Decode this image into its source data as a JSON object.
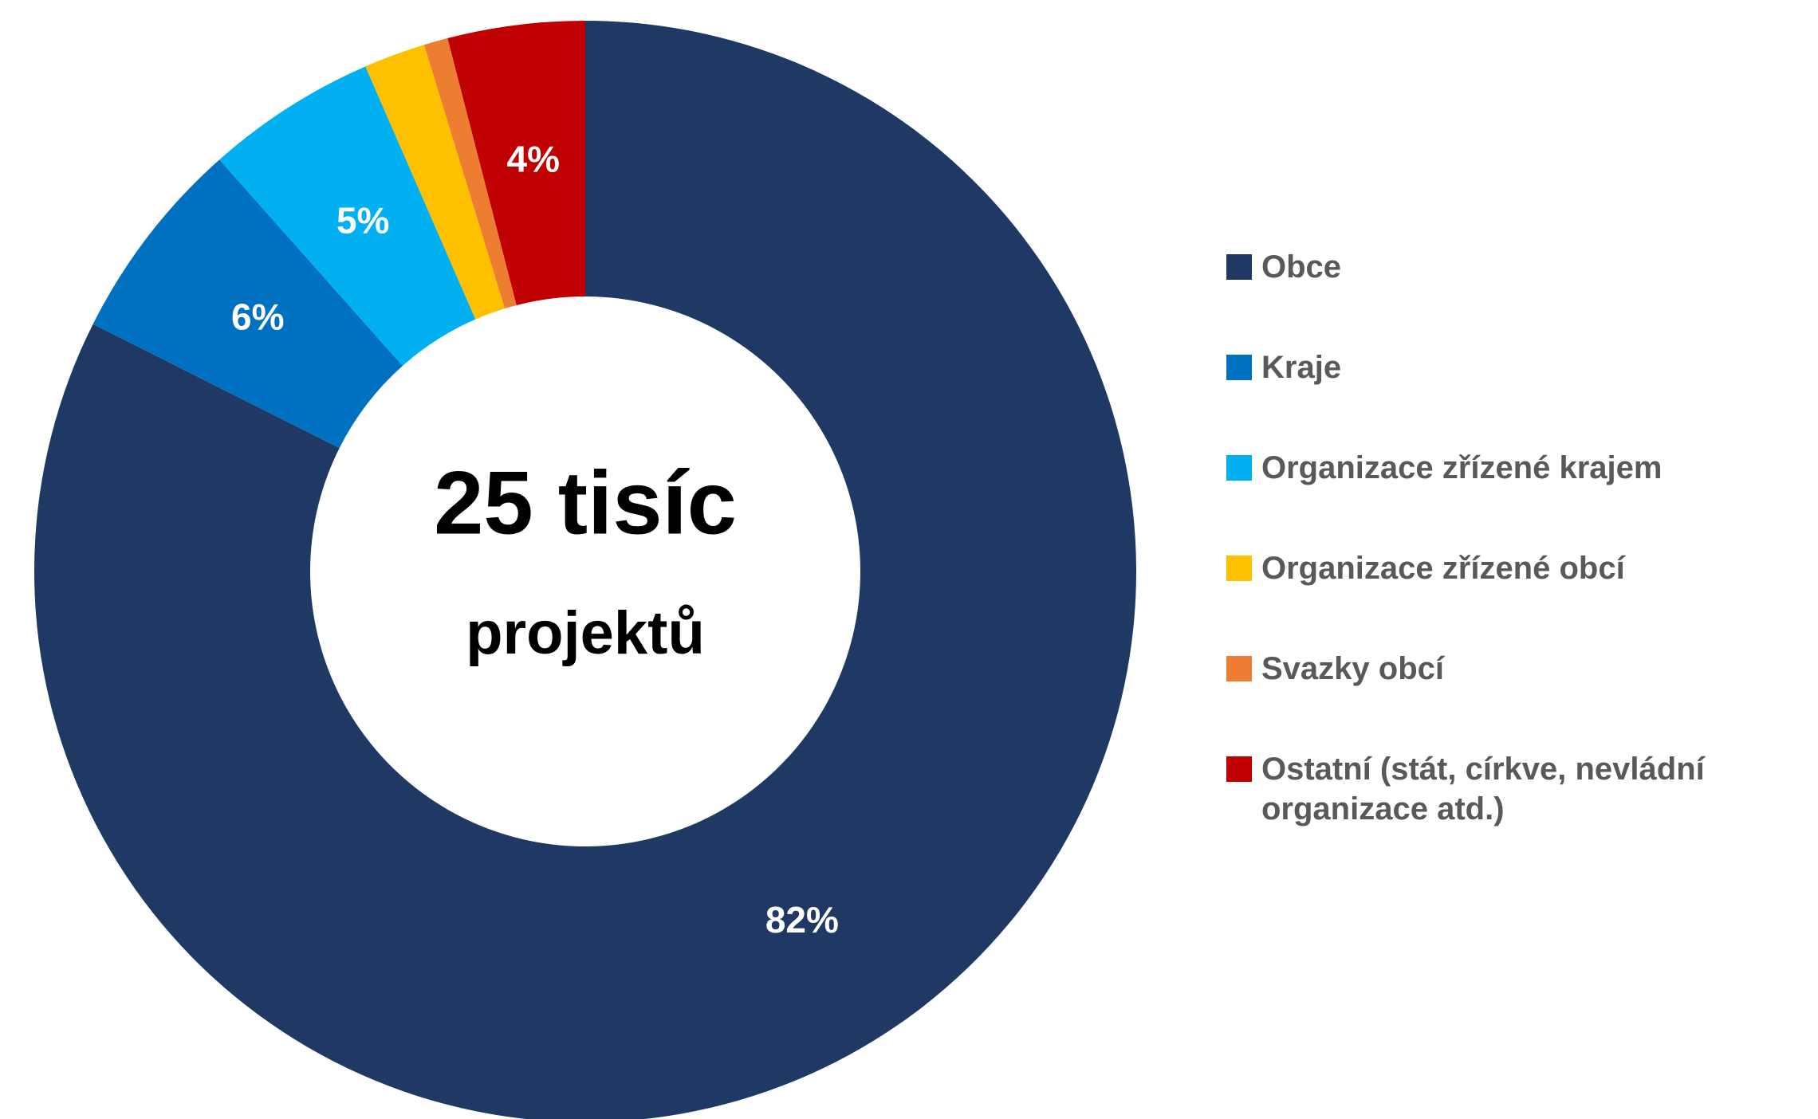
{
  "chart_data": {
    "type": "donut",
    "center_text": [
      "25 tisíc",
      "projektů"
    ],
    "categories": [
      "Obce",
      "Kraje",
      "Organizace zřízené krajem",
      "Organizace zřízené obcí",
      "Svazky obcí",
      "Ostatní (stát, církve, nevládní organizace atd.)"
    ],
    "values": [
      82,
      6,
      5,
      1.8,
      0.7,
      4
    ],
    "value_labels": [
      "82%",
      "6%",
      "5%",
      null,
      null,
      "4%"
    ],
    "colors": [
      "#203864",
      "#0070c0",
      "#00b0f0",
      "#ffc000",
      "#ed7d31",
      "#c00000"
    ],
    "legend": "right"
  }
}
